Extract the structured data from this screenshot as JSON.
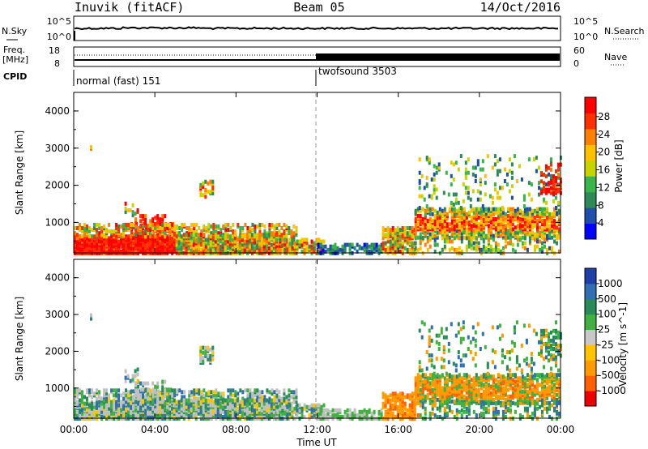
{
  "header": {
    "station": "Inuvik (fitACF)",
    "beam": "Beam 05",
    "date": "14/Oct/2016"
  },
  "left_labels": {
    "nsky": "N.Sky",
    "nsky_hi": "10^5",
    "nsky_lo": "10^0",
    "freq": "Freq.",
    "freq_unit": "[MHz]",
    "freq_hi": "18",
    "freq_lo": "8",
    "cpid": "CPID"
  },
  "right_labels": {
    "nsearch": "N.Search",
    "nsearch_hi": "10^5",
    "nsearch_lo": "10^0",
    "nave": "Nave",
    "nave_hi": "60",
    "nave_lo": "0"
  },
  "cpid_segments": [
    {
      "label": "normal (fast) 151",
      "start_hour": 0
    },
    {
      "label": "twofsound 3503",
      "start_hour": 12
    }
  ],
  "colors": {
    "power": [
      "#0000ff",
      "#1f4fa8",
      "#2e8b57",
      "#39b54a",
      "#c8d400",
      "#ffc000",
      "#ff7f00",
      "#ff3000",
      "#ff0000"
    ],
    "velocity": [
      "#ee0000",
      "#ff6000",
      "#ff9a00",
      "#ffc400",
      "#c8c8c8",
      "#40b040",
      "#2a8b5a",
      "#3070b0",
      "#1f3fa8"
    ],
    "ground": "#c0c0c0"
  },
  "chart_data": [
    {
      "type": "heatmap",
      "name": "power",
      "ylabel": "Slant Range [km]",
      "xlabel": "",
      "x_ticks": [
        "00:00",
        "04:00",
        "08:00",
        "12:00",
        "16:00",
        "20:00",
        "00:00"
      ],
      "y_ticks": [
        "1000",
        "2000",
        "3000",
        "4000"
      ],
      "xlim": [
        0,
        24
      ],
      "ylim": [
        180,
        4500
      ],
      "colorbar_label": "Power [dB]",
      "colorbar_ticks": [
        "4",
        "8",
        "12",
        "16",
        "20",
        "24",
        "28"
      ],
      "colorbar_range": [
        0,
        30
      ]
    },
    {
      "type": "heatmap",
      "name": "velocity",
      "ylabel": "Slant Range [km]",
      "xlabel": "Time UT",
      "x_ticks": [
        "00:00",
        "04:00",
        "08:00",
        "12:00",
        "16:00",
        "20:00",
        "00:00"
      ],
      "y_ticks": [
        "1000",
        "2000",
        "3000",
        "4000"
      ],
      "xlim": [
        0,
        24
      ],
      "ylim": [
        180,
        4500
      ],
      "colorbar_label": "Velocity [m s^-1]",
      "colorbar_ticks": [
        "1000",
        "500",
        "100",
        "25",
        "-25",
        "-100",
        "-500",
        "-1000"
      ]
    }
  ]
}
